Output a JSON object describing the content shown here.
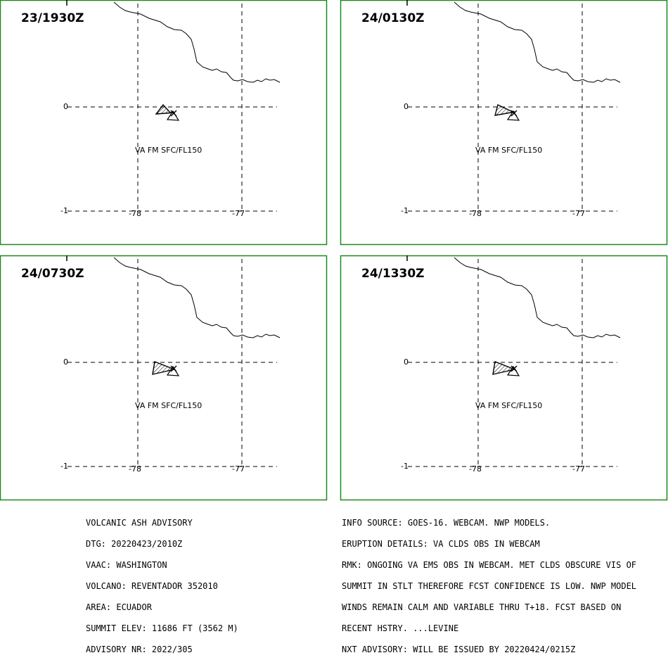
{
  "panels": [
    {
      "time": "23/1930Z",
      "va_label": "VA FM SFC/FL150",
      "lat_labels": [
        "0",
        "-1"
      ],
      "lon_labels": [
        "-78",
        "-77"
      ]
    },
    {
      "time": "24/0130Z",
      "va_label": "VA FM SFC/FL150",
      "lat_labels": [
        "0",
        "-1"
      ],
      "lon_labels": [
        "-78",
        "-77"
      ]
    },
    {
      "time": "24/0730Z",
      "va_label": "VA FM SFC/FL150",
      "lat_labels": [
        "0",
        "-1"
      ],
      "lon_labels": [
        "-78",
        "-77"
      ]
    },
    {
      "time": "24/1330Z",
      "va_label": "VA FM SFC/FL150",
      "lat_labels": [
        "0",
        "-1"
      ],
      "lon_labels": [
        "-78",
        "-77"
      ]
    }
  ],
  "advisory_left": [
    "VOLCANIC ASH ADVISORY",
    "DTG: 20220423/2010Z",
    "VAAC: WASHINGTON",
    "VOLCANO: REVENTADOR 352010",
    "AREA: ECUADOR",
    "SUMMIT ELEV: 11686 FT (3562 M)",
    "ADVISORY NR: 2022/305"
  ],
  "advisory_right": [
    "INFO SOURCE: GOES-16. WEBCAM. NWP MODELS.",
    "ERUPTION DETAILS: VA CLDS OBS IN WEBCAM",
    "RMK: ONGOING VA EMS OBS IN WEBCAM. MET CLDS OBSCURE VIS OF",
    "SUMMIT IN STLT THEREFORE FCST CONFIDENCE IS LOW. NWP MODEL",
    "WINDS REMAIN CALM AND VARIABLE THRU T+18. FCST BASED ON",
    "RECENT HSTRY. ...LEVINE",
    "NXT ADVISORY: WILL BE ISSUED BY 20220424/0215Z"
  ],
  "colors": {
    "frame": "#1a8a1a",
    "lines": "#000000",
    "background": "#ffffff"
  }
}
